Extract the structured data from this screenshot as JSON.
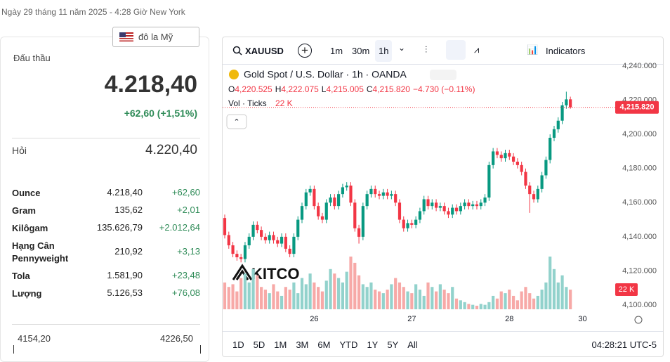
{
  "header": {
    "datetime": "Ngày 29 tháng 11 năm 2025 - 4:28 Giờ New York",
    "currency": "đô la Mỹ"
  },
  "quote": {
    "bid_label": "Đấu thầu",
    "bid": "4.218,40",
    "change": "+62,60 (+1,51%)",
    "ask_label": "Hỏi",
    "ask": "4.220,40",
    "rows": [
      [
        "Ounce",
        "4.218,40",
        "+62,60"
      ],
      [
        "Gram",
        "135,62",
        "+2,01"
      ],
      [
        "Kilôgam",
        "135.626,79",
        "+2.012,64"
      ],
      [
        "Hạng Cân Pennyweight",
        "210,92",
        "+3,13"
      ],
      [
        "Tola",
        "1.581,90",
        "+23,48"
      ],
      [
        "Lượng",
        "5.126,53",
        "+76,08"
      ]
    ],
    "range": [
      "4154,20",
      "4226,50"
    ]
  },
  "toolbar": {
    "symbol": "XAUUSD",
    "intervals": [
      "1m",
      "30m",
      "1h"
    ],
    "indicators": "Indicators"
  },
  "footer": {
    "ranges": [
      "1D",
      "5D",
      "1M",
      "3M",
      "6M",
      "YTD",
      "1Y",
      "5Y",
      "All"
    ],
    "clock": "04:28:21 UTC-5"
  },
  "chart_data": {
    "type": "candlestick",
    "title": "Gold Spot / U.S. Dollar · 1h · OANDA",
    "ohlc_text": [
      "O",
      "4,220.525",
      "H",
      "4,222.075",
      "L",
      "4,215.005",
      "C",
      "4,215.820",
      "−4.730 (−0.11%)"
    ],
    "volume_title": "Vol · Ticks",
    "volume_label": "22 K",
    "price_tag": "4,215.820",
    "watermark": "KITCO",
    "up_color": "#089981",
    "down_color": "#f23645",
    "up_volume_color": "#92d2cc",
    "down_volume_color": "#f7a9a7",
    "categories": [
      null,
      null,
      null,
      null,
      null,
      null,
      null,
      null,
      null,
      null,
      null,
      null,
      null,
      null,
      null,
      null,
      null,
      null,
      null,
      null,
      null,
      null,
      "26",
      null,
      null,
      null,
      null,
      null,
      null,
      null,
      null,
      null,
      null,
      null,
      null,
      null,
      null,
      null,
      null,
      null,
      null,
      null,
      null,
      null,
      null,
      null,
      "27",
      null,
      null,
      null,
      null,
      null,
      null,
      null,
      null,
      null,
      null,
      null,
      null,
      null,
      null,
      null,
      null,
      null,
      null,
      null,
      null,
      null,
      null,
      null,
      "28",
      null,
      null,
      null,
      null,
      null,
      null,
      null,
      null,
      null,
      null,
      null,
      null,
      null,
      null,
      null,
      null,
      null,
      "30"
    ],
    "open": [
      4151,
      4141,
      4135,
      4130,
      4128,
      4127,
      4135,
      4140,
      4147,
      4144,
      4140,
      4138,
      4141,
      4138,
      4136,
      4140,
      4133,
      4130,
      4140,
      4150,
      4158,
      4166,
      4168,
      4158,
      4152,
      4150,
      4160,
      4163,
      4158,
      4165,
      4169,
      4170,
      4160,
      4145,
      4140,
      4158,
      4165,
      4168,
      4165,
      4164,
      4166,
      4164,
      4165,
      4160,
      4150,
      4145,
      4148,
      4147,
      4150,
      4155,
      4162,
      4158,
      4160,
      4157,
      4158,
      4155,
      4153,
      4157,
      4155,
      4158,
      4160,
      4158,
      4159,
      4158,
      4160,
      4163,
      4182,
      4190,
      4188,
      4186,
      4189,
      4187,
      4184,
      4182,
      4178,
      4170,
      4165,
      4162,
      4168,
      4176,
      4185,
      4198,
      4203,
      4208,
      4217,
      4220.525,
      null,
      null,
      null
    ],
    "high": [
      4153,
      4143,
      4137,
      4132,
      4130,
      4137,
      4142,
      4149,
      4149,
      4146,
      4142,
      4143,
      4143,
      4140,
      4142,
      4142,
      4135,
      4142,
      4152,
      4160,
      4168,
      4170,
      4170,
      4160,
      4154,
      4162,
      4165,
      4165,
      4167,
      4171,
      4172,
      4172,
      4162,
      4147,
      4160,
      4167,
      4170,
      4170,
      4167,
      4168,
      4168,
      4167,
      4167,
      4162,
      4152,
      4150,
      4150,
      4152,
      4157,
      4164,
      4164,
      4162,
      4162,
      4160,
      4160,
      4157,
      4159,
      4159,
      4160,
      4162,
      4162,
      4161,
      4161,
      4162,
      4165,
      4184,
      4192,
      4192,
      4190,
      4191,
      4191,
      4189,
      4186,
      4184,
      4180,
      4172,
      4167,
      4170,
      4178,
      4187,
      4200,
      4205,
      4210,
      4219,
      4225,
      4222.075,
      null,
      null,
      null
    ],
    "low": [
      4139,
      4133,
      4128,
      4126,
      4125,
      4125,
      4133,
      4138,
      4142,
      4138,
      4136,
      4136,
      4136,
      4134,
      4134,
      4131,
      4128,
      4128,
      4138,
      4148,
      4156,
      4164,
      4156,
      4150,
      4148,
      4148,
      4158,
      4156,
      4156,
      4163,
      4167,
      4158,
      4143,
      4136,
      4138,
      4156,
      4163,
      4163,
      4162,
      4162,
      4162,
      4162,
      4158,
      4148,
      4143,
      4143,
      4145,
      4145,
      4148,
      4153,
      4156,
      4156,
      4155,
      4155,
      4153,
      4151,
      4151,
      4153,
      4153,
      4156,
      4156,
      4156,
      4156,
      4156,
      4158,
      4161,
      4180,
      4186,
      4184,
      4184,
      4185,
      4182,
      4180,
      4176,
      4168,
      4154,
      4160,
      4160,
      4166,
      4174,
      4183,
      4196,
      4201,
      4206,
      4215,
      4215.005,
      null,
      null,
      null
    ],
    "close": [
      4141,
      4135,
      4130,
      4128,
      4127,
      4135,
      4140,
      4147,
      4144,
      4140,
      4138,
      4141,
      4138,
      4136,
      4140,
      4133,
      4130,
      4140,
      4150,
      4158,
      4166,
      4168,
      4158,
      4152,
      4150,
      4160,
      4163,
      4158,
      4165,
      4169,
      4170,
      4160,
      4145,
      4140,
      4158,
      4165,
      4168,
      4165,
      4164,
      4166,
      4164,
      4165,
      4160,
      4150,
      4145,
      4148,
      4147,
      4150,
      4155,
      4162,
      4158,
      4160,
      4157,
      4158,
      4155,
      4153,
      4157,
      4155,
      4158,
      4160,
      4158,
      4159,
      4158,
      4160,
      4163,
      4182,
      4190,
      4188,
      4186,
      4189,
      4187,
      4184,
      4182,
      4178,
      4170,
      4165,
      4162,
      4168,
      4176,
      4185,
      4198,
      4203,
      4208,
      4217,
      4220.5,
      4215.82,
      null,
      null,
      null
    ],
    "volume": [
      30000,
      25000,
      28000,
      20000,
      35000,
      40000,
      30000,
      45000,
      38000,
      25000,
      22000,
      18000,
      28000,
      20000,
      15000,
      25000,
      22000,
      30000,
      18000,
      35000,
      28000,
      40000,
      30000,
      25000,
      20000,
      32000,
      45000,
      40000,
      35000,
      30000,
      42000,
      59000,
      52000,
      38000,
      28000,
      25000,
      30000,
      22000,
      20000,
      18000,
      22000,
      28000,
      35000,
      30000,
      25000,
      20000,
      18000,
      28000,
      22000,
      15000,
      30000,
      25000,
      20000,
      28000,
      22000,
      18000,
      25000,
      12000,
      10000,
      8000,
      6000,
      5000,
      4000,
      6000,
      5000,
      8000,
      15000,
      12000,
      20000,
      18000,
      22000,
      15000,
      10000,
      20000,
      25000,
      18000,
      12000,
      15000,
      22000,
      30000,
      59000,
      45000,
      30000,
      38000,
      25000,
      22000,
      null,
      null,
      null
    ],
    "ylim": [
      4100,
      4240
    ],
    "yticks": [
      {
        "value": 4100,
        "label": "4,100.000"
      },
      {
        "value": 4120,
        "label": "4,120.000"
      },
      {
        "value": 4140,
        "label": "4,140.000"
      },
      {
        "value": 4160,
        "label": "4,160.000"
      },
      {
        "value": 4180,
        "label": "4,180.000"
      },
      {
        "value": 4200,
        "label": "4,200.000"
      },
      {
        "value": 4220,
        "label": "4,220.000"
      },
      {
        "value": 4240,
        "label": "4,240.000"
      }
    ]
  }
}
